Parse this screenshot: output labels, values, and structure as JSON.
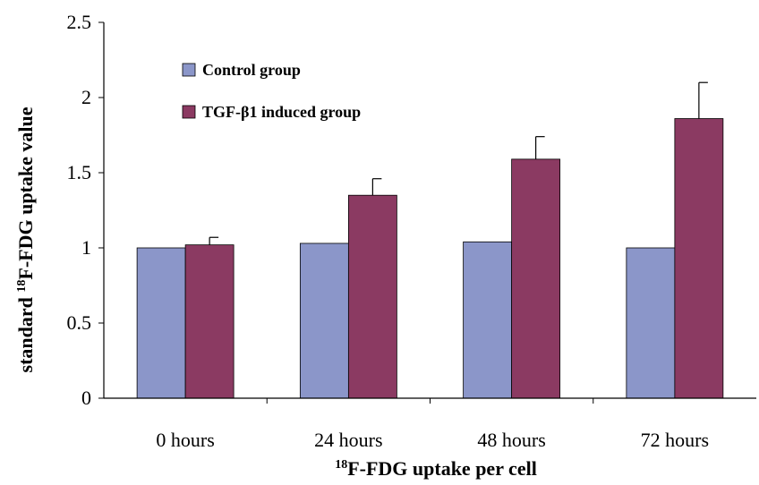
{
  "chart_data": {
    "type": "bar",
    "categories": [
      "0 hours",
      "24 hours",
      "48 hours",
      "72 hours"
    ],
    "series": [
      {
        "name": "Control group",
        "values": [
          1.0,
          1.03,
          1.04,
          1.0
        ],
        "errors": [
          0,
          0,
          0,
          0
        ],
        "color": "#8b96c9"
      },
      {
        "name": "TGF-β1 induced group",
        "values": [
          1.02,
          1.35,
          1.59,
          1.86
        ],
        "errors": [
          0.05,
          0.11,
          0.15,
          0.24
        ],
        "color": "#8b3a62"
      }
    ],
    "ylim": [
      0,
      2.5
    ],
    "yticks": [
      "0",
      "0.5",
      "1",
      "1.5",
      "2",
      "2.5"
    ],
    "ytick_values": [
      0,
      0.5,
      1,
      1.5,
      2,
      2.5
    ],
    "xlabel": {
      "sup": "18",
      "text": "F-FDG uptake per cell"
    },
    "ylabel": {
      "pre": "standard ",
      "sup": "18",
      "text": "F-FDG uptake value"
    },
    "legend_position": "top-left",
    "grid": false
  }
}
